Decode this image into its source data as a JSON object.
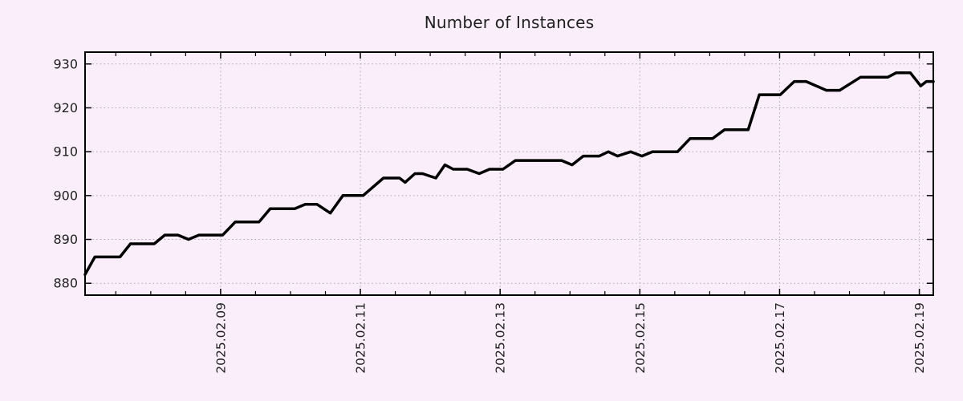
{
  "chart_data": {
    "type": "line",
    "title": "Number of Instances",
    "xlabel": "",
    "ylabel": "",
    "xlim": [
      7.06,
      19.2
    ],
    "ylim": [
      877.3,
      932.7
    ],
    "grid": "dotted, major ticks only, both axes",
    "legend_position": "none",
    "x_unit": "day of month, February 2025",
    "x_ticks": [
      {
        "v": 9,
        "label": "2025.02.09"
      },
      {
        "v": 11,
        "label": "2025.02.11"
      },
      {
        "v": 13,
        "label": "2025.02.13"
      },
      {
        "v": 15,
        "label": "2025.02.15"
      },
      {
        "v": 17,
        "label": "2025.02.17"
      },
      {
        "v": 19,
        "label": "2025.02.19"
      }
    ],
    "x_minor_tick_step": 0.5,
    "y_ticks": [
      {
        "v": 880,
        "label": "880"
      },
      {
        "v": 890,
        "label": "890"
      },
      {
        "v": 900,
        "label": "900"
      },
      {
        "v": 910,
        "label": "910"
      },
      {
        "v": 920,
        "label": "920"
      },
      {
        "v": 930,
        "label": "930"
      }
    ],
    "series": [
      {
        "name": "instances",
        "color": "#000000",
        "points": [
          [
            7.06,
            882
          ],
          [
            7.2,
            886
          ],
          [
            7.56,
            886
          ],
          [
            7.71,
            889
          ],
          [
            8.05,
            889
          ],
          [
            8.2,
            891
          ],
          [
            8.39,
            891
          ],
          [
            8.54,
            890
          ],
          [
            8.69,
            891
          ],
          [
            9.03,
            891
          ],
          [
            9.21,
            894
          ],
          [
            9.55,
            894
          ],
          [
            9.71,
            897
          ],
          [
            10.06,
            897
          ],
          [
            10.21,
            898
          ],
          [
            10.38,
            898
          ],
          [
            10.57,
            896
          ],
          [
            10.75,
            900
          ],
          [
            11.04,
            900
          ],
          [
            11.33,
            904
          ],
          [
            11.56,
            904
          ],
          [
            11.64,
            903
          ],
          [
            11.78,
            905
          ],
          [
            11.89,
            905
          ],
          [
            12.08,
            904
          ],
          [
            12.21,
            907
          ],
          [
            12.33,
            906
          ],
          [
            12.53,
            906
          ],
          [
            12.7,
            905
          ],
          [
            12.85,
            906
          ],
          [
            13.04,
            906
          ],
          [
            13.22,
            908
          ],
          [
            13.88,
            908
          ],
          [
            14.03,
            907
          ],
          [
            14.19,
            909
          ],
          [
            14.42,
            909
          ],
          [
            14.55,
            910
          ],
          [
            14.68,
            909
          ],
          [
            14.87,
            910
          ],
          [
            15.03,
            909
          ],
          [
            15.18,
            910
          ],
          [
            15.54,
            910
          ],
          [
            15.72,
            913
          ],
          [
            16.04,
            913
          ],
          [
            16.21,
            915
          ],
          [
            16.55,
            915
          ],
          [
            16.71,
            923
          ],
          [
            17.01,
            923
          ],
          [
            17.21,
            926
          ],
          [
            17.38,
            926
          ],
          [
            17.67,
            924
          ],
          [
            17.86,
            924
          ],
          [
            18.16,
            927
          ],
          [
            18.55,
            927
          ],
          [
            18.67,
            928
          ],
          [
            18.87,
            928
          ],
          [
            19.02,
            925
          ],
          [
            19.1,
            926
          ],
          [
            19.2,
            926
          ]
        ]
      }
    ]
  },
  "style": {
    "background": "#faeefa",
    "grid_color": "#b49eb4",
    "axis_color": "#000000",
    "text_color": "#1f1f1f",
    "line_color": "#000000",
    "line_width": 3.5
  }
}
